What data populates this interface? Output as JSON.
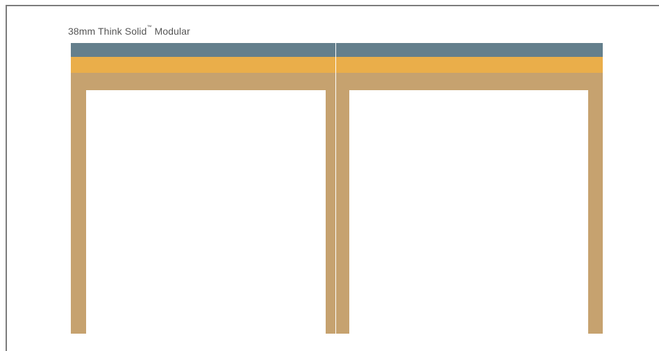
{
  "caption": {
    "text": "38mm Think Solid",
    "trademark": "™",
    "suffix": " Modular"
  },
  "colors": {
    "frame_border": "#7b7b7b",
    "top_band": "#647f8c",
    "accent_band": "#eaae4a",
    "wood": "#c6a26f",
    "background": "#ffffff"
  },
  "panels": [
    {
      "name": "left-module"
    },
    {
      "name": "right-module"
    }
  ]
}
